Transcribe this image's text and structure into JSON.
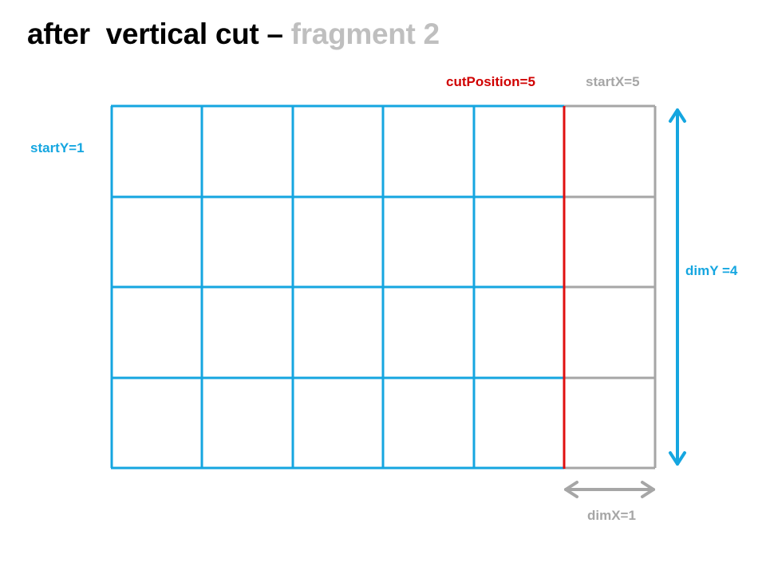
{
  "title": {
    "main": "after  vertical cut – ",
    "fragment": "fragment 2"
  },
  "labels": {
    "cut_position": "cutPosition=5",
    "start_x": "startX=5",
    "start_y": "startY=1",
    "dim_y": "dimY =4",
    "dim_x": "dimX=1"
  },
  "colors": {
    "grid_blue": "#15a6e0",
    "grid_gray": "#a6a6a6",
    "cut_red": "#e01010",
    "title_black": "#000000",
    "title_gray": "#bfbfbf",
    "cut_label_red": "#d00000"
  },
  "grid": {
    "blue_columns": 5,
    "gray_columns": 1,
    "rows": 4
  }
}
